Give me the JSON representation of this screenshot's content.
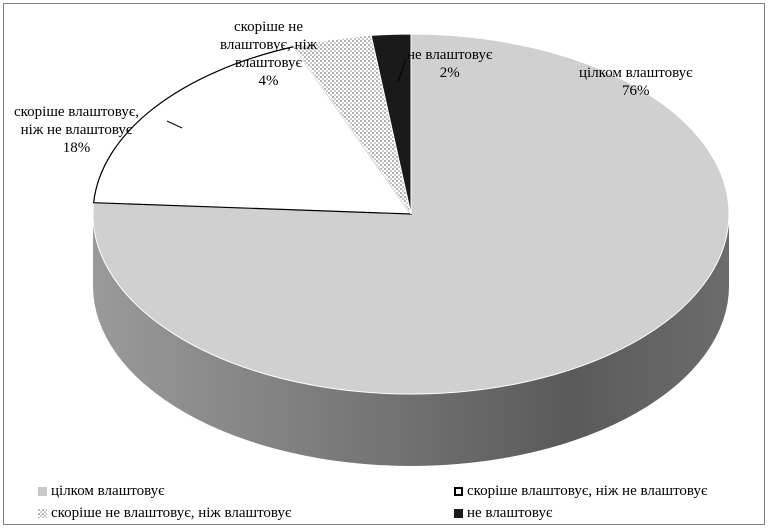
{
  "chart_data": {
    "type": "pie",
    "style": "3d",
    "title": "",
    "slices": [
      {
        "label": "цілком влаштовує",
        "value": 76,
        "value_label": "76%",
        "color": "#d0d0d0"
      },
      {
        "label": "скоріше влаштовує, ніж не влаштовує",
        "value": 18,
        "value_label": "18%",
        "color": "#ffffff"
      },
      {
        "label": "скоріше не влаштовує, ніж влаштовує",
        "value": 4,
        "value_label": "4%",
        "color": "#e8e8e8",
        "pattern": "dots"
      },
      {
        "label": "не влаштовує",
        "value": 2,
        "value_label": "2%",
        "color": "#1a1a1a"
      }
    ],
    "legend_position": "bottom"
  },
  "labels": {
    "slice0": {
      "name": "цілком влаштовує",
      "pct": "76%"
    },
    "slice1": {
      "line1": "скоріше влаштовує,",
      "line2": "ніж не влаштовує",
      "pct": "18%"
    },
    "slice2": {
      "line1": "скоріше не",
      "line2": "влаштовує, ніж",
      "line3": "влаштовує",
      "pct": "4%"
    },
    "slice3": {
      "name": "не влаштовує",
      "pct": "2%"
    }
  },
  "legend": {
    "item0": "цілком влаштовує",
    "item1": "скоріше влаштовує, ніж не влаштовує",
    "item2": "скоріше не влаштовує, ніж влаштовує",
    "item3": "не влаштовує"
  }
}
